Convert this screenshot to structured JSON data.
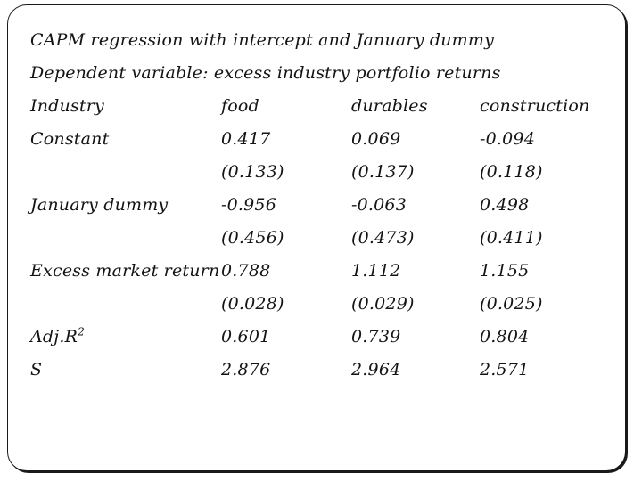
{
  "slide": {
    "title": "CAPM regression with intercept and January dummy",
    "subtitle": "Dependent variable: excess industry portfolio returns"
  },
  "table": {
    "columns": [
      "Industry",
      "food",
      "durables",
      "construction"
    ],
    "rows": [
      {
        "label": "Constant",
        "values": [
          "0.417",
          "0.069",
          "-0.094"
        ]
      },
      {
        "label": "",
        "values": [
          "(0.133)",
          "(0.137)",
          "(0.118)"
        ]
      },
      {
        "label": "January dummy",
        "values": [
          "-0.956",
          "-0.063",
          "0.498"
        ]
      },
      {
        "label": "",
        "values": [
          "(0.456)",
          "(0.473)",
          "(0.411)"
        ]
      },
      {
        "label": "Excess market return",
        "values": [
          "0.788",
          "1.112",
          "1.155"
        ]
      },
      {
        "label": "",
        "values": [
          "(0.028)",
          "(0.029)",
          "(0.025)"
        ]
      },
      {
        "label": "Adj.R",
        "label_sup": "2",
        "values": [
          "0.601",
          "0.739",
          "0.804"
        ]
      },
      {
        "label": "S",
        "values": [
          "2.876",
          "2.964",
          "2.571"
        ]
      }
    ]
  },
  "colors": {
    "background": "#ffffff",
    "text": "#141414",
    "border": "#1a1a1a"
  }
}
